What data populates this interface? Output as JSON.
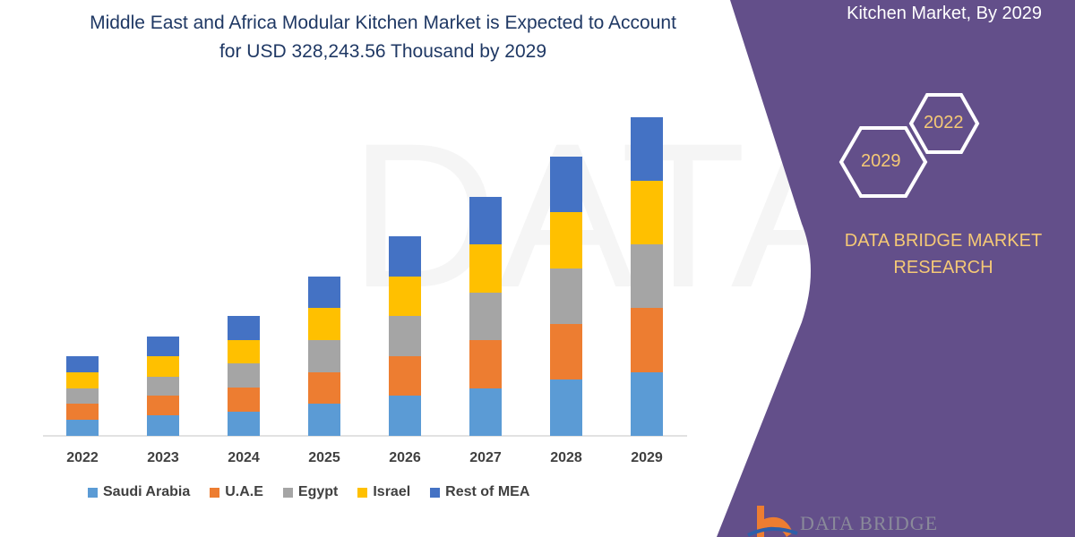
{
  "title_lines": [
    "Middle East and Africa Modular Kitchen Market is Expected to Account",
    "for USD 328,243.56 Thousand by 2029"
  ],
  "right_panel": {
    "title": "Kitchen Market, By 2029",
    "hex_labels": [
      "2022",
      "2029"
    ],
    "brand_lines": [
      "DATA BRIDGE MARKET",
      "RESEARCH"
    ],
    "logo_text": "DATA BRIDGE",
    "color": "#634f8a"
  },
  "chart_data": {
    "type": "bar",
    "stacked": true,
    "categories": [
      "2022",
      "2023",
      "2024",
      "2025",
      "2026",
      "2027",
      "2028",
      "2029"
    ],
    "series": [
      {
        "name": "Saudi Arabia",
        "color": "#5b9bd5",
        "values": [
          18,
          23,
          27,
          36,
          45,
          53,
          63,
          71
        ]
      },
      {
        "name": "U.A.E",
        "color": "#ed7d31",
        "values": [
          18,
          22,
          27,
          35,
          44,
          54,
          62,
          72
        ]
      },
      {
        "name": "Egypt",
        "color": "#a5a5a5",
        "values": [
          17,
          21,
          27,
          36,
          45,
          53,
          62,
          71
        ]
      },
      {
        "name": "Israel",
        "color": "#ffc000",
        "values": [
          18,
          23,
          26,
          36,
          44,
          54,
          63,
          71
        ]
      },
      {
        "name": "Rest of MEA",
        "color": "#4472c4",
        "values": [
          18,
          22,
          27,
          35,
          45,
          53,
          62,
          71
        ]
      }
    ],
    "legend": "bottom",
    "grid": false,
    "y_axis_shown": false
  }
}
